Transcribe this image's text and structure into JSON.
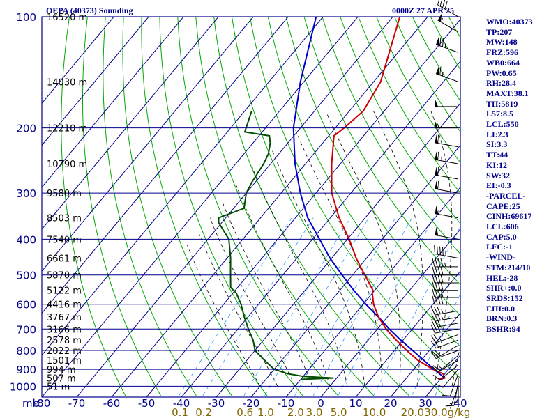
{
  "header": {
    "title": "OEPA (40373) Sounding",
    "time": "0000Z 27 APR 25"
  },
  "chart_data": {
    "type": "skew-t",
    "pressure_axis": {
      "unit_label": "mb",
      "ticks": [
        100,
        200,
        300,
        400,
        500,
        600,
        700,
        800,
        900,
        1000
      ]
    },
    "temperature_axis": {
      "ticks": [
        -80,
        -70,
        -60,
        -50,
        -40,
        -30,
        -20,
        -10,
        0,
        10,
        20,
        30,
        40
      ]
    },
    "mixing_ratio_labels": [
      "0.1",
      "0.2",
      "0.6",
      "1.0",
      "2.0",
      "3.0",
      "5.0",
      "10.0",
      "20.0",
      "30.0"
    ],
    "mixing_ratio_unit": "g/kg",
    "heights": [
      {
        "p": 100,
        "label": "16520 m"
      },
      {
        "p": 150,
        "label": "14030 m"
      },
      {
        "p": 200,
        "label": "12210 m"
      },
      {
        "p": 250,
        "label": "10790 m"
      },
      {
        "p": 300,
        "label": "9580 m"
      },
      {
        "p": 350,
        "label": "8503 m"
      },
      {
        "p": 400,
        "label": "7540 m"
      },
      {
        "p": 450,
        "label": "6661 m"
      },
      {
        "p": 500,
        "label": "5870 m"
      },
      {
        "p": 550,
        "label": "5122 m"
      },
      {
        "p": 600,
        "label": "4416 m"
      },
      {
        "p": 650,
        "label": "3767 m"
      },
      {
        "p": 700,
        "label": "3166 m"
      },
      {
        "p": 750,
        "label": "2578 m"
      },
      {
        "p": 800,
        "label": "2022 m"
      },
      {
        "p": 850,
        "label": "1501 m"
      },
      {
        "p": 900,
        "label": "994 m"
      },
      {
        "p": 950,
        "label": "507 m"
      },
      {
        "p": 1000,
        "label": "51 m"
      }
    ],
    "temperature_profile": [
      [
        958,
        29.5
      ],
      [
        950,
        31.0
      ],
      [
        925,
        29.5
      ],
      [
        900,
        25.5
      ],
      [
        850,
        19.0
      ],
      [
        800,
        13.5
      ],
      [
        750,
        8.0
      ],
      [
        700,
        2.5
      ],
      [
        650,
        -2.5
      ],
      [
        600,
        -7.0
      ],
      [
        560,
        -10.0
      ],
      [
        550,
        -10.5
      ],
      [
        500,
        -16.5
      ],
      [
        450,
        -23.0
      ],
      [
        400,
        -29.5
      ],
      [
        350,
        -37.5
      ],
      [
        300,
        -45.5
      ],
      [
        250,
        -52.5
      ],
      [
        210,
        -58.5
      ],
      [
        200,
        -57.5
      ],
      [
        180,
        -56.0
      ],
      [
        150,
        -58.0
      ],
      [
        100,
        -68.0
      ]
    ],
    "dewpoint_profile": [
      [
        958,
        -10.0
      ],
      [
        950,
        -1.0
      ],
      [
        940,
        -10.0
      ],
      [
        925,
        -15.0
      ],
      [
        900,
        -20.0
      ],
      [
        850,
        -25.0
      ],
      [
        800,
        -30.0
      ],
      [
        750,
        -33.0
      ],
      [
        700,
        -37.0
      ],
      [
        650,
        -41.0
      ],
      [
        600,
        -45.0
      ],
      [
        560,
        -49.0
      ],
      [
        540,
        -52.0
      ],
      [
        500,
        -55.0
      ],
      [
        450,
        -59.0
      ],
      [
        400,
        -64.0
      ],
      [
        360,
        -71.0
      ],
      [
        350,
        -72.0
      ],
      [
        330,
        -67.0
      ],
      [
        300,
        -70.0
      ],
      [
        280,
        -71.0
      ],
      [
        250,
        -72.0
      ],
      [
        235,
        -73.0
      ],
      [
        220,
        -75.0
      ],
      [
        210,
        -77.0
      ],
      [
        205,
        -85.0
      ],
      [
        180,
        -88.0
      ]
    ],
    "parcel_profile": [
      [
        950,
        31.0
      ],
      [
        900,
        25.8
      ],
      [
        850,
        20.7
      ],
      [
        800,
        15.2
      ],
      [
        750,
        9.3
      ],
      [
        700,
        3.4
      ],
      [
        650,
        -2.5
      ],
      [
        600,
        -9.2
      ],
      [
        550,
        -16.0
      ],
      [
        500,
        -23.0
      ],
      [
        450,
        -30.5
      ],
      [
        400,
        -38.0
      ],
      [
        350,
        -46.5
      ],
      [
        300,
        -54.5
      ],
      [
        250,
        -63.0
      ],
      [
        200,
        -72.0
      ],
      [
        150,
        -81.0
      ],
      [
        100,
        -92.0
      ]
    ],
    "wind_barbs": [
      {
        "p": 1000,
        "dir": 200,
        "spd": 5
      },
      {
        "p": 975,
        "dir": 190,
        "spd": 10
      },
      {
        "p": 950,
        "dir": 180,
        "spd": 10
      },
      {
        "p": 925,
        "dir": 200,
        "spd": 10
      },
      {
        "p": 900,
        "dir": 220,
        "spd": 10
      },
      {
        "p": 875,
        "dir": 230,
        "spd": 10
      },
      {
        "p": 850,
        "dir": 240,
        "spd": 15
      },
      {
        "p": 825,
        "dir": 230,
        "spd": 15
      },
      {
        "p": 800,
        "dir": 250,
        "spd": 15
      },
      {
        "p": 775,
        "dir": 240,
        "spd": 20
      },
      {
        "p": 750,
        "dir": 250,
        "spd": 20
      },
      {
        "p": 725,
        "dir": 250,
        "spd": 25
      },
      {
        "p": 700,
        "dir": 260,
        "spd": 30
      },
      {
        "p": 675,
        "dir": 260,
        "spd": 30
      },
      {
        "p": 650,
        "dir": 260,
        "spd": 35
      },
      {
        "p": 625,
        "dir": 260,
        "spd": 35
      },
      {
        "p": 600,
        "dir": 270,
        "spd": 40
      },
      {
        "p": 575,
        "dir": 270,
        "spd": 40
      },
      {
        "p": 550,
        "dir": 270,
        "spd": 40
      },
      {
        "p": 525,
        "dir": 270,
        "spd": 40
      },
      {
        "p": 500,
        "dir": 270,
        "spd": 40
      },
      {
        "p": 475,
        "dir": 270,
        "spd": 45
      },
      {
        "p": 450,
        "dir": 280,
        "spd": 45
      },
      {
        "p": 400,
        "dir": 280,
        "spd": 50
      },
      {
        "p": 350,
        "dir": 280,
        "spd": 55
      },
      {
        "p": 300,
        "dir": 280,
        "spd": 60
      },
      {
        "p": 275,
        "dir": 280,
        "spd": 60
      },
      {
        "p": 250,
        "dir": 280,
        "spd": 65
      },
      {
        "p": 225,
        "dir": 280,
        "spd": 60
      },
      {
        "p": 200,
        "dir": 270,
        "spd": 55
      },
      {
        "p": 175,
        "dir": 270,
        "spd": 50
      },
      {
        "p": 150,
        "dir": 290,
        "spd": 65
      },
      {
        "p": 125,
        "dir": 290,
        "spd": 75
      },
      {
        "p": 110,
        "dir": 300,
        "spd": 55
      },
      {
        "p": 100,
        "dir": 300,
        "spd": 40
      }
    ],
    "colors": {
      "frame": "#00008b",
      "dry_adiabat": "#00aa00",
      "moist_adiabat": "#000000",
      "mixing_ratio": "#3399ff",
      "temperature": "#cc0000",
      "dewpoint": "#004d00",
      "parcel": "#0000cc",
      "mixing_label": "#806600"
    }
  },
  "indices": [
    "WMO:40373",
    "TP:207",
    "MW:148",
    "FRZ:596",
    "WB0:664",
    "PW:0.65",
    "RH:28.4",
    "MAXT:38.1",
    "TH:5819",
    "L57:8.5",
    "LCL:550",
    "LI:2.3",
    "SI:3.3",
    "TT:44",
    "KI:12",
    "SW:32",
    "EI:-0.3",
    "-PARCEL-",
    "CAPE:25",
    "CINH:69617",
    "LCL:606",
    "CAP:5.0",
    "LFC:-1",
    "-WIND-",
    "STM:214/10",
    "HEL:-28",
    "SHR+:0.0",
    "SRDS:152",
    "EHI:0.0",
    "BRN:0.3",
    "BSHR:94"
  ]
}
